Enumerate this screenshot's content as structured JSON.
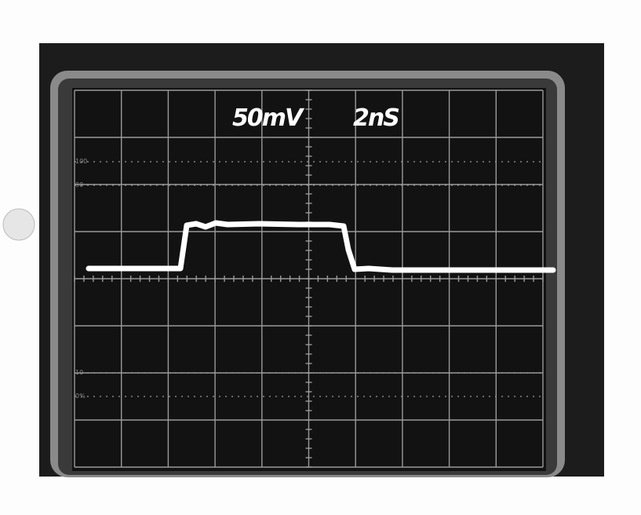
{
  "screen": {
    "volts_per_div": "50mV",
    "time_per_div": "2nS",
    "graticule_labels": [
      "100",
      "90",
      "10",
      "0%"
    ]
  }
}
